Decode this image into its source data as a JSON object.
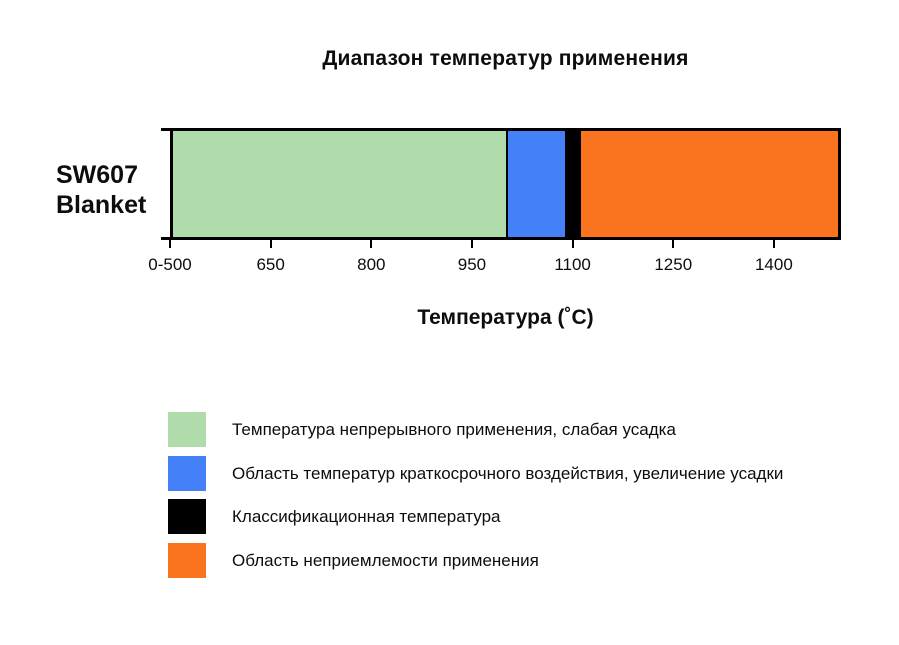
{
  "page": {
    "background": "#ffffff"
  },
  "chart_data": {
    "type": "bar",
    "orientation": "horizontal-stacked",
    "title": "Диапазон температур применения",
    "xlabel": "Температура (˚C)",
    "category": "SW607 Blanket",
    "category_lines": [
      "SW607",
      "Blanket"
    ],
    "axis": {
      "min": 500,
      "max": 1500,
      "ticks": [
        {
          "value": 500,
          "label": "0-500"
        },
        {
          "value": 650,
          "label": "650"
        },
        {
          "value": 800,
          "label": "800"
        },
        {
          "value": 950,
          "label": "950"
        },
        {
          "value": 1100,
          "label": "1100"
        },
        {
          "value": 1250,
          "label": "1250"
        },
        {
          "value": 1400,
          "label": "1400"
        }
      ]
    },
    "segments": [
      {
        "name": "continuous-use",
        "from": 500,
        "to": 1000,
        "color": "#b0dcac",
        "label": "Температура непрерывного применения, слабая усадка"
      },
      {
        "name": "short-term-exposure",
        "from": 1000,
        "to": 1090,
        "color": "#4480f8",
        "label": "Область температур краткосрочного воздействия, увеличение усадки"
      },
      {
        "name": "classification-temperature",
        "from": 1090,
        "to": 1110,
        "color": "#000000",
        "label": "Классификационная температура"
      },
      {
        "name": "unsuitable-range",
        "from": 1110,
        "to": 1500,
        "color": "#fa7420",
        "label": "Область неприемлемости применения"
      }
    ],
    "grid": false,
    "legend_position": "bottom-left"
  }
}
